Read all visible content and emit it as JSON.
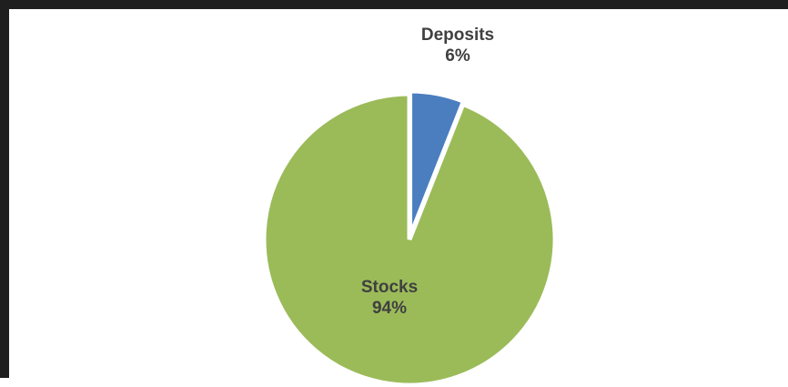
{
  "chart_data": {
    "type": "pie",
    "title": "",
    "slices": [
      {
        "name": "Deposits",
        "value": 6,
        "value_label": "6%",
        "color": "#4a7ebf",
        "label_position": "outside"
      },
      {
        "name": "Stocks",
        "value": 94,
        "value_label": "94%",
        "color": "#9bbb59",
        "label_position": "inside"
      }
    ],
    "start_direction": "top",
    "direction": "clockwise",
    "exploded_slice": "Deposits",
    "legend": "none"
  }
}
